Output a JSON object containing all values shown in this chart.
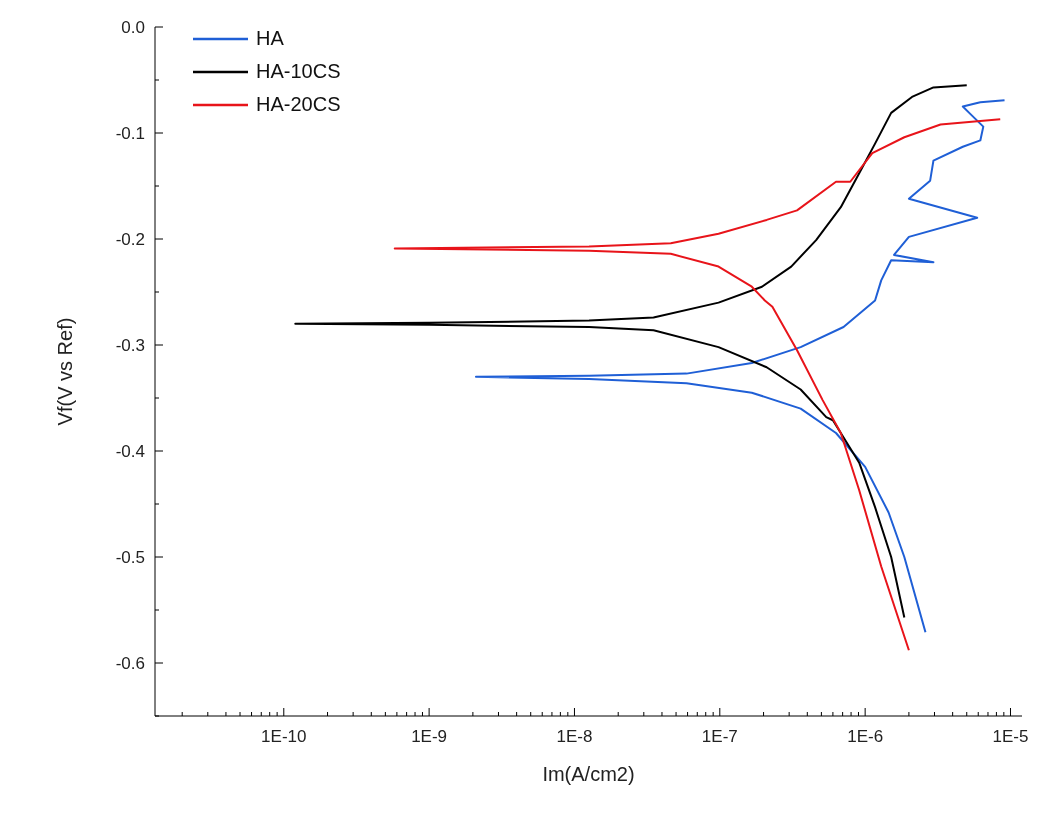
{
  "chart_data": {
    "type": "line",
    "xlabel": "Im(A/cm2)",
    "ylabel": "Vf(V vs Ref)",
    "log": "x",
    "legend": "top left",
    "grid": false,
    "line_style": "solid",
    "xlim": [
      1.3e-11,
      1.2e-05
    ],
    "ylim": [
      -0.65,
      0
    ],
    "xticks": [
      {
        "value": 2e-11,
        "label": null
      },
      {
        "value": 3e-11,
        "label": null
      },
      {
        "value": 4e-11,
        "label": null
      },
      {
        "value": 5e-11,
        "label": null
      },
      {
        "value": 6e-11,
        "label": null
      },
      {
        "value": 7e-11,
        "label": null
      },
      {
        "value": 8e-11,
        "label": null
      },
      {
        "value": 9e-11,
        "label": null
      },
      {
        "value": 1e-10,
        "label": "1E-10"
      },
      {
        "value": 2e-10,
        "label": null
      },
      {
        "value": 3e-10,
        "label": null
      },
      {
        "value": 4e-10,
        "label": null
      },
      {
        "value": 5e-10,
        "label": null
      },
      {
        "value": 6e-10,
        "label": null
      },
      {
        "value": 7e-10,
        "label": null
      },
      {
        "value": 8e-10,
        "label": null
      },
      {
        "value": 9e-10,
        "label": null
      },
      {
        "value": 1e-09,
        "label": "1E-9"
      },
      {
        "value": 2e-09,
        "label": null
      },
      {
        "value": 3e-09,
        "label": null
      },
      {
        "value": 4e-09,
        "label": null
      },
      {
        "value": 5e-09,
        "label": null
      },
      {
        "value": 6e-09,
        "label": null
      },
      {
        "value": 7e-09,
        "label": null
      },
      {
        "value": 8e-09,
        "label": null
      },
      {
        "value": 9e-09,
        "label": null
      },
      {
        "value": 1e-08,
        "label": "1E-8"
      },
      {
        "value": 2e-08,
        "label": null
      },
      {
        "value": 3e-08,
        "label": null
      },
      {
        "value": 4e-08,
        "label": null
      },
      {
        "value": 5e-08,
        "label": null
      },
      {
        "value": 6e-08,
        "label": null
      },
      {
        "value": 7e-08,
        "label": null
      },
      {
        "value": 8e-08,
        "label": null
      },
      {
        "value": 9e-08,
        "label": null
      },
      {
        "value": 1e-07,
        "label": "1E-7"
      },
      {
        "value": 2e-07,
        "label": null
      },
      {
        "value": 3e-07,
        "label": null
      },
      {
        "value": 4e-07,
        "label": null
      },
      {
        "value": 5e-07,
        "label": null
      },
      {
        "value": 6e-07,
        "label": null
      },
      {
        "value": 7e-07,
        "label": null
      },
      {
        "value": 8e-07,
        "label": null
      },
      {
        "value": 9e-07,
        "label": null
      },
      {
        "value": 1e-06,
        "label": "1E-6"
      },
      {
        "value": 2e-06,
        "label": null
      },
      {
        "value": 3e-06,
        "label": null
      },
      {
        "value": 4e-06,
        "label": null
      },
      {
        "value": 5e-06,
        "label": null
      },
      {
        "value": 6e-06,
        "label": null
      },
      {
        "value": 7e-06,
        "label": null
      },
      {
        "value": 8e-06,
        "label": null
      },
      {
        "value": 9e-06,
        "label": null
      },
      {
        "value": 1e-05,
        "label": "1E-5"
      }
    ],
    "yticks": [
      {
        "value": 0,
        "label": "0.0"
      },
      {
        "value": -0.05,
        "label": null
      },
      -0.1,
      {
        "value": -0.15,
        "label": null
      },
      -0.2,
      {
        "value": -0.25,
        "label": null
      },
      -0.3,
      {
        "value": -0.35,
        "label": null
      },
      -0.4,
      {
        "value": -0.45,
        "label": null
      },
      -0.5,
      {
        "value": -0.55,
        "label": null
      },
      -0.6,
      {
        "value": -0.65,
        "label": null
      }
    ],
    "series": [
      {
        "name": "HA",
        "color": "#1f5fd6",
        "x": [
          2.6e-06,
          1.86e-06,
          1.45e-06,
          1e-06,
          6.3e-07,
          3.6e-07,
          1.66e-07,
          5.9e-08,
          1.26e-08,
          2.1e-09,
          1.26e-08,
          5.9e-08,
          1.66e-07,
          3.6e-07,
          7.1e-07,
          1.17e-06,
          1.29e-06,
          1.51e-06,
          2.95e-06,
          1.58e-06,
          2e-06,
          5.9e-06,
          2e-06,
          2.8e-06,
          2.95e-06,
          4.7e-06,
          6.2e-06,
          6.5e-06,
          5.2e-06,
          4.7e-06,
          6.2e-06,
          9.1e-06
        ],
        "values": [
          -0.571,
          -0.5,
          -0.458,
          -0.415,
          -0.383,
          -0.36,
          -0.345,
          -0.336,
          -0.332,
          -0.33,
          -0.329,
          -0.327,
          -0.317,
          -0.302,
          -0.283,
          -0.258,
          -0.239,
          -0.22,
          -0.222,
          -0.215,
          -0.198,
          -0.18,
          -0.162,
          -0.145,
          -0.126,
          -0.113,
          -0.107,
          -0.094,
          -0.081,
          -0.075,
          -0.071,
          -0.069
        ]
      },
      {
        "name": "HA-10CS",
        "color": "#000000",
        "x": [
          1.86e-06,
          1.51e-06,
          1.17e-06,
          9.1e-07,
          6e-07,
          5.4e-07,
          3.6e-07,
          2.1e-07,
          9.8e-08,
          3.5e-08,
          1.26e-08,
          1e-09,
          1.2e-10,
          1e-09,
          1.26e-08,
          3.5e-08,
          9.8e-08,
          1.95e-07,
          3.1e-07,
          4.6e-07,
          6.8e-07,
          9.1e-07,
          1.17e-06,
          1.51e-06,
          2.1e-06,
          2.95e-06,
          5e-06
        ],
        "values": [
          -0.557,
          -0.5,
          -0.453,
          -0.411,
          -0.371,
          -0.368,
          -0.342,
          -0.321,
          -0.302,
          -0.286,
          -0.283,
          -0.281,
          -0.28,
          -0.279,
          -0.277,
          -0.274,
          -0.26,
          -0.245,
          -0.226,
          -0.201,
          -0.17,
          -0.138,
          -0.11,
          -0.081,
          -0.066,
          -0.057,
          -0.055
        ]
      },
      {
        "name": "HA-20CS",
        "color": "#e8141a",
        "x": [
          2e-06,
          1.29e-06,
          9.1e-07,
          6.8e-07,
          5.1e-07,
          3.4e-07,
          2.3e-07,
          2.04e-07,
          1.66e-07,
          9.8e-08,
          4.6e-08,
          1.26e-08,
          5.8e-10,
          1.26e-08,
          4.6e-08,
          9.8e-08,
          2.1e-07,
          3.4e-07,
          6.3e-07,
          7.9e-07,
          1.12e-06,
          1.86e-06,
          3.3e-06,
          8.5e-06
        ],
        "values": [
          -0.588,
          -0.509,
          -0.437,
          -0.383,
          -0.352,
          -0.305,
          -0.264,
          -0.258,
          -0.245,
          -0.226,
          -0.214,
          -0.211,
          -0.209,
          -0.207,
          -0.204,
          -0.195,
          -0.182,
          -0.173,
          -0.146,
          -0.146,
          -0.119,
          -0.104,
          -0.092,
          -0.087
        ]
      }
    ]
  }
}
